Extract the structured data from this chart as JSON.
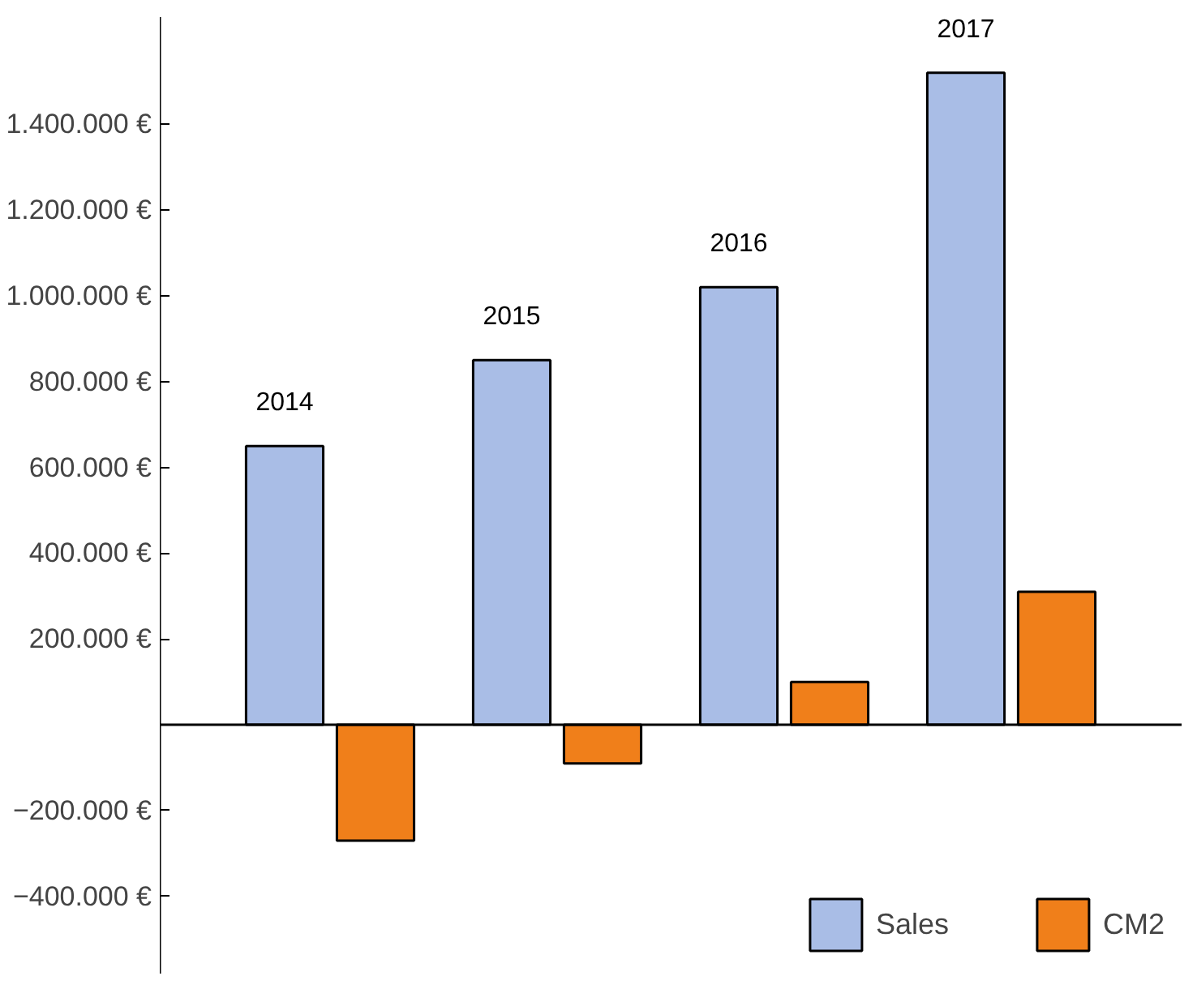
{
  "chart_data": {
    "type": "bar",
    "categories": [
      "2014",
      "2015",
      "2016",
      "2017"
    ],
    "series": [
      {
        "name": "Sales",
        "color": "#a9bde6",
        "values": [
          650000,
          850000,
          1020000,
          1520000
        ]
      },
      {
        "name": "CM2",
        "color": "#f07f1a",
        "values": [
          -270000,
          -90000,
          100000,
          310000
        ]
      }
    ],
    "ylim": [
      -580000,
      1650000
    ],
    "yticks": [
      {
        "value": -400000,
        "label": "−400.000 €"
      },
      {
        "value": -200000,
        "label": "−200.000 €"
      },
      {
        "value": 200000,
        "label": "200.000 €"
      },
      {
        "value": 400000,
        "label": "400.000 €"
      },
      {
        "value": 600000,
        "label": "600.000 €"
      },
      {
        "value": 800000,
        "label": "800.000 €"
      },
      {
        "value": 1000000,
        "label": "1.000.000 €"
      },
      {
        "value": 1200000,
        "label": "1.200.000 €"
      },
      {
        "value": 1400000,
        "label": "1.400.000 €"
      }
    ],
    "grid": false,
    "legend": "bottom right"
  }
}
